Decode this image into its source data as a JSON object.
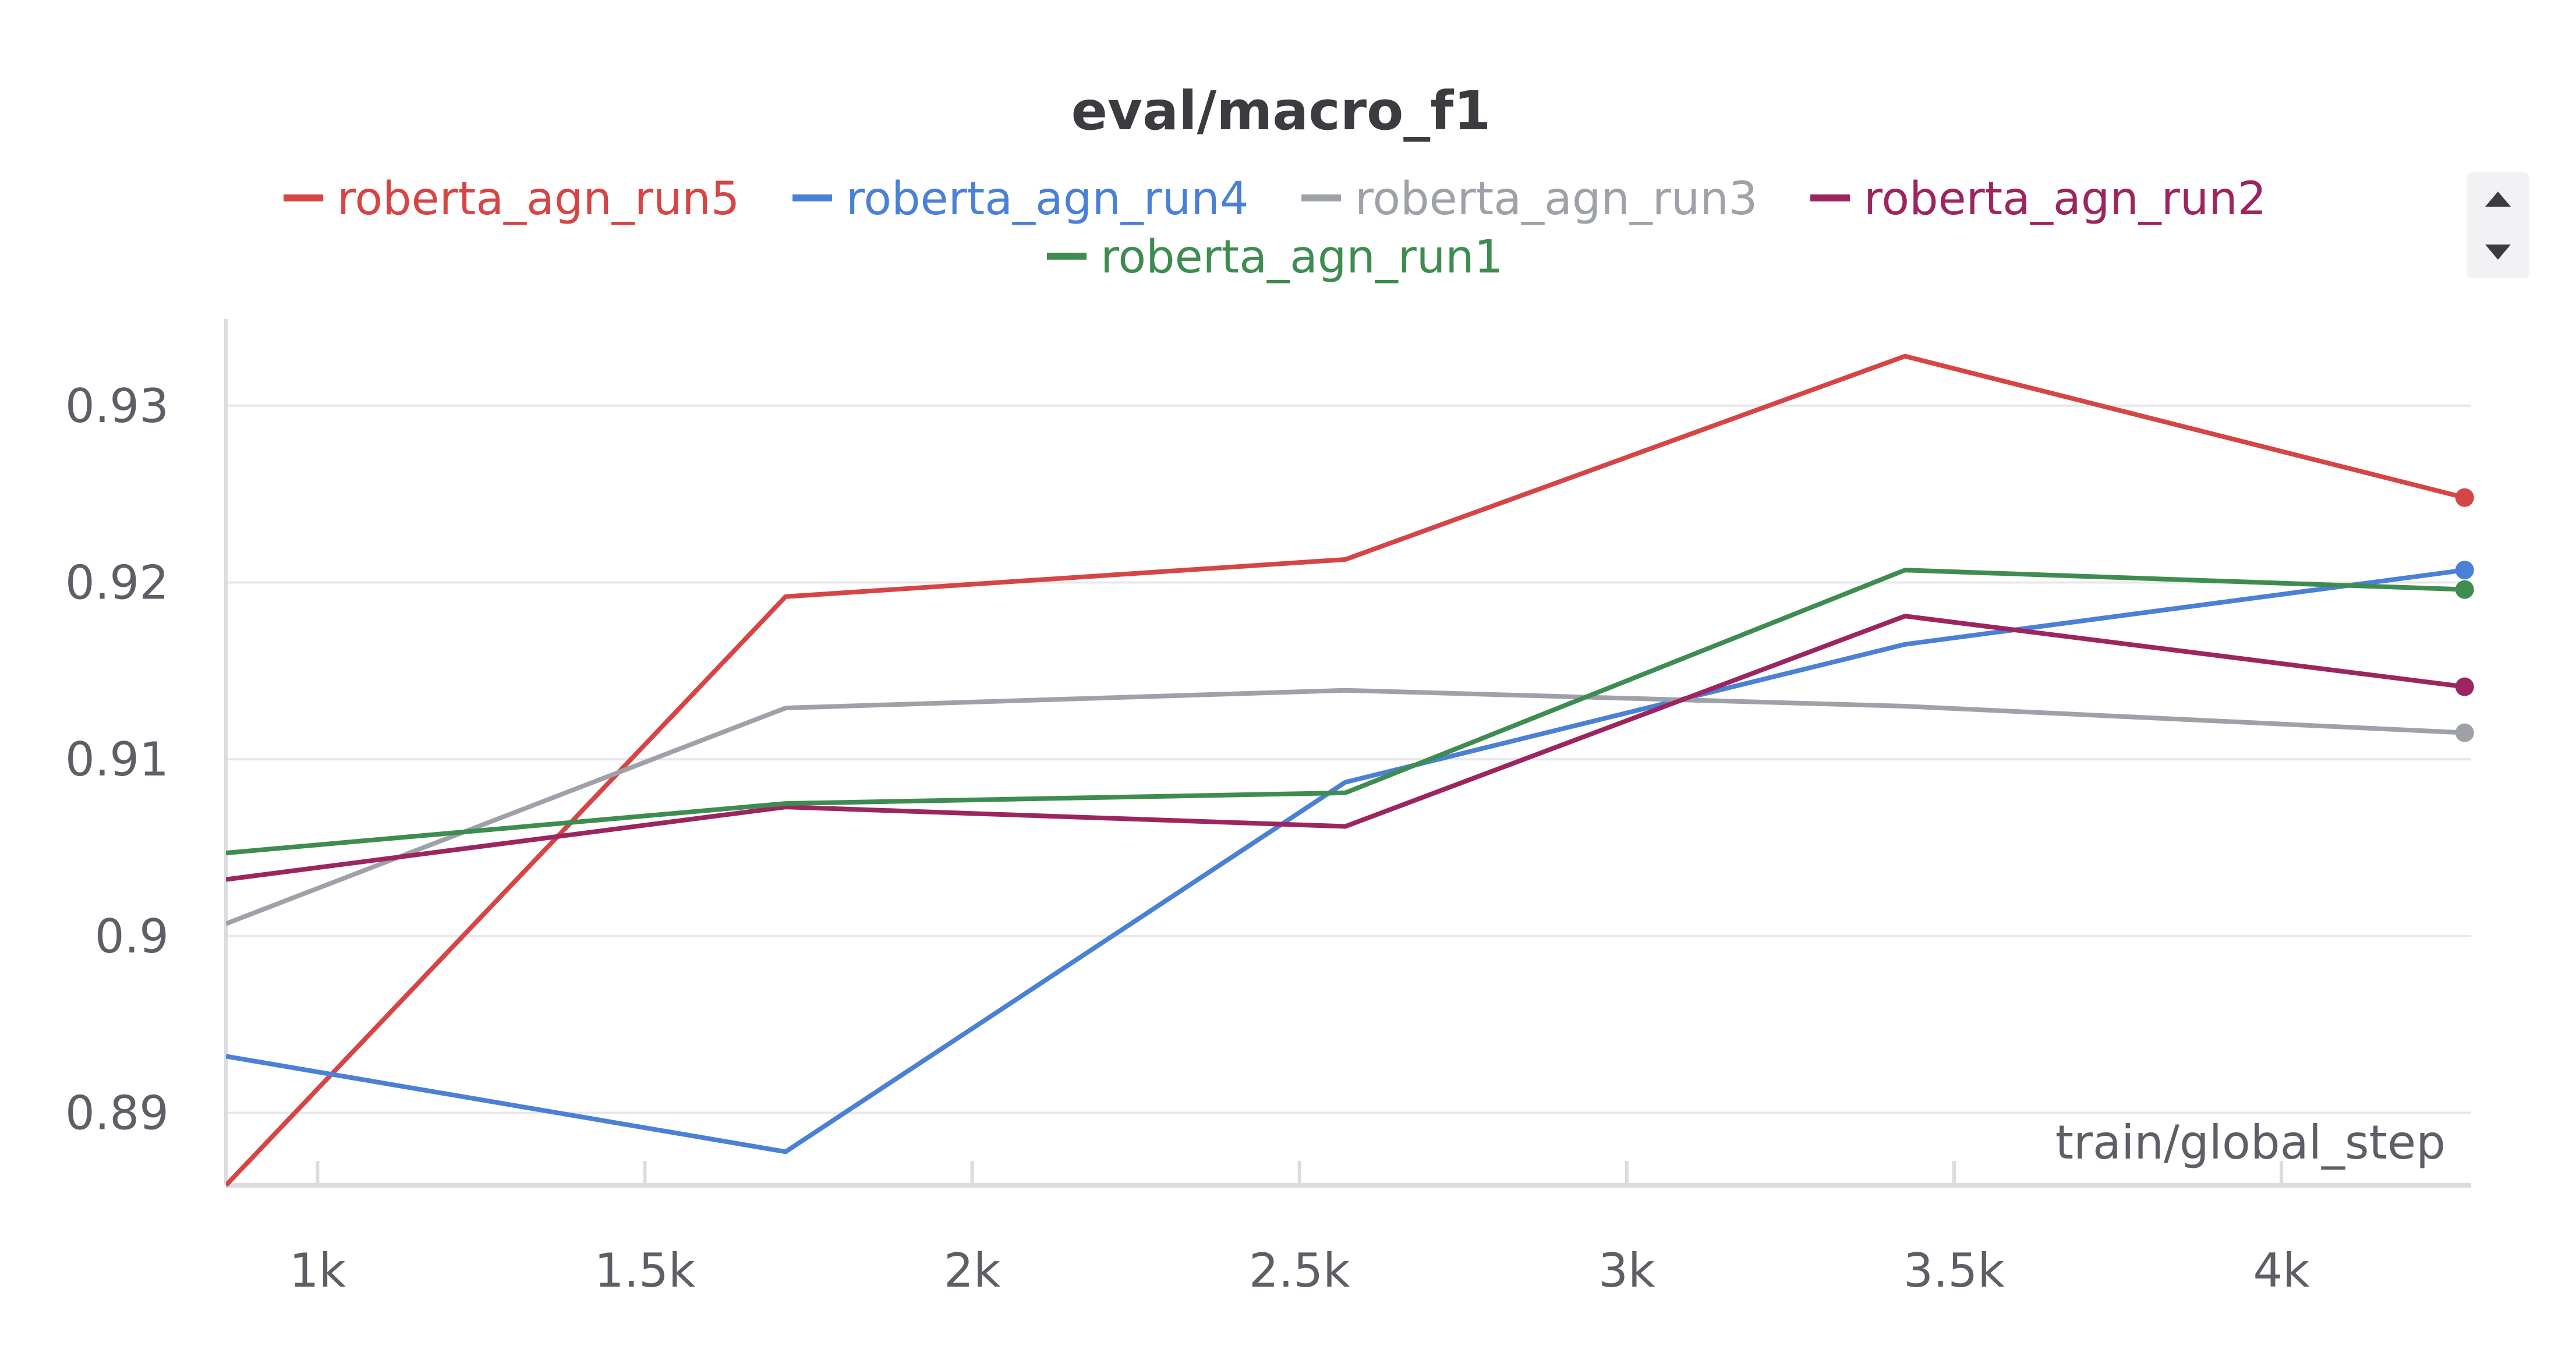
{
  "chart_data": {
    "type": "line",
    "title": "eval/macro_f1",
    "xlabel": "train/global_step",
    "ylabel": "",
    "xlim": [
      860,
      4290
    ],
    "ylim": [
      0.8859,
      0.9349
    ],
    "x_ticks": [
      1000,
      1500,
      2000,
      2500,
      3000,
      3500,
      4000
    ],
    "x_tick_labels": [
      "1k",
      "1.5k",
      "2k",
      "2.5k",
      "3k",
      "3.5k",
      "4k"
    ],
    "y_ticks": [
      0.89,
      0.9,
      0.91,
      0.92,
      0.93
    ],
    "y_tick_labels": [
      "0.89",
      "0.9",
      "0.91",
      "0.92",
      "0.93"
    ],
    "grid": true,
    "legend_position": "top-center",
    "x": [
      860,
      1715,
      2570,
      3425,
      4280
    ],
    "series": [
      {
        "name": "roberta_agn_run5",
        "color": "#d64545",
        "values": [
          0.8859,
          0.9192,
          0.9213,
          0.9328,
          0.9248
        ]
      },
      {
        "name": "roberta_agn_run4",
        "color": "#4a80d6",
        "values": [
          0.8932,
          0.8878,
          0.9087,
          0.9165,
          0.9207
        ]
      },
      {
        "name": "roberta_agn_run3",
        "color": "#9ea2a8",
        "values": [
          0.9007,
          0.9129,
          0.9139,
          0.913,
          0.9115
        ]
      },
      {
        "name": "roberta_agn_run2",
        "color": "#9c2560",
        "values": [
          0.9032,
          0.9073,
          0.9062,
          0.9181,
          0.9141
        ]
      },
      {
        "name": "roberta_agn_run1",
        "color": "#3e8c50",
        "values": [
          0.9047,
          0.9075,
          0.9081,
          0.9207,
          0.9196
        ]
      }
    ]
  }
}
